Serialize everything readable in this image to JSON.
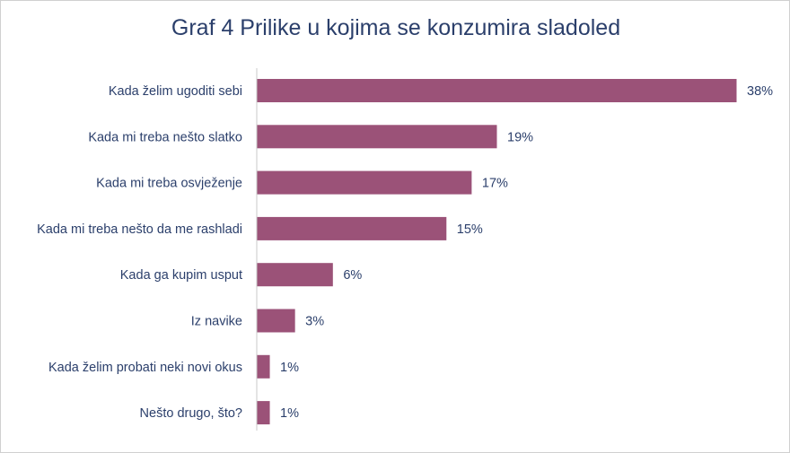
{
  "chart_data": {
    "type": "bar",
    "orientation": "horizontal",
    "title": "Graf 4 Prilike u kojima se konzumira sladoled",
    "categories": [
      "Kada želim ugoditi sebi",
      "Kada mi treba nešto slatko",
      "Kada mi treba osvježenje",
      "Kada mi treba nešto da me rashladi",
      "Kada ga kupim usput",
      "Iz navike",
      "Kada želim probati neki novi okus",
      "Nešto drugo, što?"
    ],
    "values": [
      38,
      19,
      17,
      15,
      6,
      3,
      1,
      1
    ],
    "value_labels": [
      "38%",
      "19%",
      "17%",
      "15%",
      "6%",
      "3%",
      "1%",
      "1%"
    ],
    "unit": "%",
    "xlim": [
      0,
      38
    ],
    "grid": false,
    "legend": "none",
    "colors": {
      "bar": "#9b5278",
      "text": "#2b3f6b",
      "axis": "#c8c8c8"
    }
  }
}
